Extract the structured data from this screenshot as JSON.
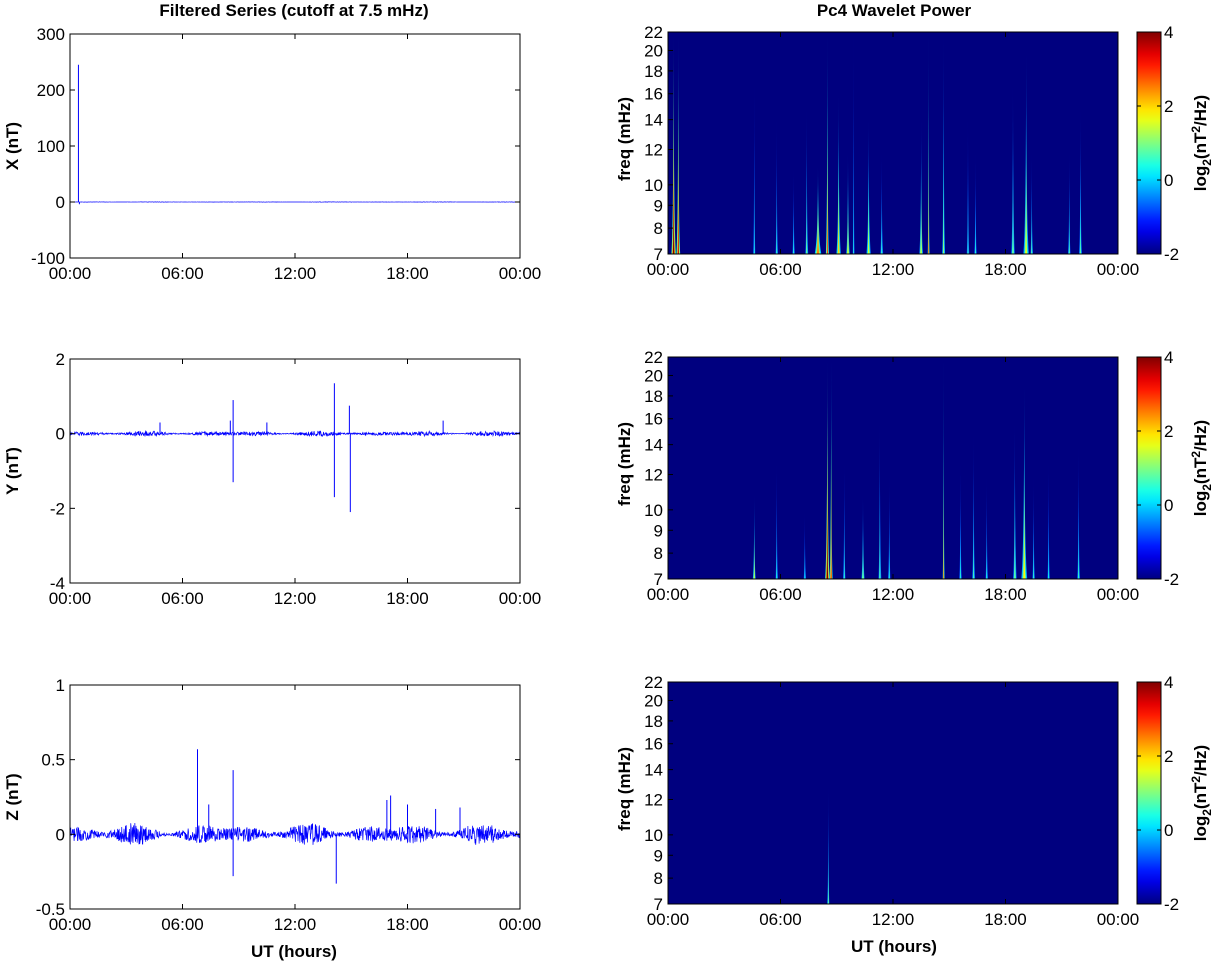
{
  "figure": {
    "left_title": "Filtered Series (cutoff at 7.5 mHz)",
    "right_title": "Pc4 Wavelet Power",
    "x_axis_label": "UT (hours)",
    "colors": {
      "trace": "#0000ff",
      "spectrogram_background": "#00007f",
      "axes": "#000000"
    }
  },
  "chart_data": [
    {
      "type": "line",
      "ylabel": "X (nT)",
      "xlim_hours": [
        0,
        24
      ],
      "ylim": [
        -100,
        300
      ],
      "x_ticks": [
        "00:00",
        "06:00",
        "12:00",
        "18:00",
        "00:00"
      ],
      "y_ticks": [
        -100,
        0,
        100,
        200,
        300
      ],
      "series": [
        {
          "baseline": 0,
          "noise_amplitude": 0.3,
          "spikes": [
            {
              "hour": 0.45,
              "value": 245
            },
            {
              "hour": 0.5,
              "value": -4
            }
          ]
        }
      ]
    },
    {
      "type": "line",
      "ylabel": "Y (nT)",
      "xlim_hours": [
        0,
        24
      ],
      "ylim": [
        -4,
        2
      ],
      "x_ticks": [
        "00:00",
        "06:00",
        "12:00",
        "18:00",
        "00:00"
      ],
      "y_ticks": [
        -4,
        -2,
        0,
        2
      ],
      "series": [
        {
          "baseline": 0,
          "noise_amplitude": 0.06,
          "spikes": [
            {
              "hour": 8.7,
              "value": 0.9
            },
            {
              "hour": 8.7,
              "value": -1.3
            },
            {
              "hour": 8.55,
              "value": 0.35
            },
            {
              "hour": 4.8,
              "value": 0.3
            },
            {
              "hour": 14.1,
              "value": 1.35
            },
            {
              "hour": 14.1,
              "value": -1.7
            },
            {
              "hour": 14.9,
              "value": 0.75
            },
            {
              "hour": 14.95,
              "value": -2.1
            },
            {
              "hour": 19.9,
              "value": 0.35
            },
            {
              "hour": 10.5,
              "value": 0.3
            }
          ]
        }
      ]
    },
    {
      "type": "line",
      "ylabel": "Z (nT)",
      "xlim_hours": [
        0,
        24
      ],
      "ylim": [
        -0.5,
        1
      ],
      "x_ticks": [
        "00:00",
        "06:00",
        "12:00",
        "18:00",
        "00:00"
      ],
      "y_ticks": [
        -0.5,
        0,
        0.5,
        1
      ],
      "xlabel": "UT (hours)",
      "series": [
        {
          "baseline": 0,
          "noise_amplitude": 0.06,
          "spikes": [
            {
              "hour": 6.8,
              "value": 0.57
            },
            {
              "hour": 8.7,
              "value": 0.43
            },
            {
              "hour": 8.7,
              "value": -0.28
            },
            {
              "hour": 14.2,
              "value": -0.33
            },
            {
              "hour": 16.9,
              "value": 0.23
            },
            {
              "hour": 17.1,
              "value": 0.26
            },
            {
              "hour": 18.0,
              "value": 0.2
            },
            {
              "hour": 7.4,
              "value": 0.2
            },
            {
              "hour": 19.5,
              "value": 0.17
            },
            {
              "hour": 20.8,
              "value": 0.18
            }
          ]
        }
      ]
    },
    {
      "type": "heatmap",
      "ylabel": "freq (mHz)",
      "xlim_hours": [
        0,
        24
      ],
      "ylim_mHz": [
        7,
        22
      ],
      "y_scale": "log",
      "x_ticks": [
        "00:00",
        "06:00",
        "12:00",
        "18:00",
        "00:00"
      ],
      "y_ticks": [
        7,
        8,
        9,
        10,
        12,
        14,
        16,
        18,
        20,
        22
      ],
      "colorbar": {
        "label_base": "log",
        "label_sub": "2",
        "label_mid": "(nT",
        "label_sup": "2",
        "label_end": "/Hz)",
        "range": [
          -2,
          4
        ],
        "ticks": [
          -2,
          0,
          2,
          4
        ]
      },
      "events": [
        {
          "hour": 0.3,
          "top_mHz": 22,
          "peak": 4.0,
          "width": 0.12
        },
        {
          "hour": 0.55,
          "top_mHz": 22,
          "peak": 3.5,
          "width": 0.1
        },
        {
          "hour": 4.6,
          "top_mHz": 17,
          "peak": 0.5,
          "width": 0.06
        },
        {
          "hour": 5.8,
          "top_mHz": 14,
          "peak": 0.6,
          "width": 0.07
        },
        {
          "hour": 6.7,
          "top_mHz": 11,
          "peak": 0.5,
          "width": 0.07
        },
        {
          "hour": 7.4,
          "top_mHz": 15,
          "peak": 1.0,
          "width": 0.08
        },
        {
          "hour": 8.0,
          "top_mHz": 11,
          "peak": 2.5,
          "width": 0.18
        },
        {
          "hour": 8.5,
          "top_mHz": 22,
          "peak": 3.0,
          "width": 0.08
        },
        {
          "hour": 9.1,
          "top_mHz": 16,
          "peak": 2.0,
          "width": 0.12
        },
        {
          "hour": 9.6,
          "top_mHz": 12,
          "peak": 1.8,
          "width": 0.1
        },
        {
          "hour": 9.9,
          "top_mHz": 22,
          "peak": 0.5,
          "width": 0.05
        },
        {
          "hour": 10.7,
          "top_mHz": 14,
          "peak": 1.5,
          "width": 0.12
        },
        {
          "hour": 11.4,
          "top_mHz": 12,
          "peak": 0.6,
          "width": 0.08
        },
        {
          "hour": 13.5,
          "top_mHz": 14,
          "peak": 1.6,
          "width": 0.1
        },
        {
          "hour": 13.9,
          "top_mHz": 22,
          "peak": 2.8,
          "width": 0.05
        },
        {
          "hour": 14.7,
          "top_mHz": 22,
          "peak": 1.2,
          "width": 0.08
        },
        {
          "hour": 16.0,
          "top_mHz": 14,
          "peak": 0.6,
          "width": 0.07
        },
        {
          "hour": 16.4,
          "top_mHz": 12,
          "peak": 0.5,
          "width": 0.07
        },
        {
          "hour": 18.4,
          "top_mHz": 17,
          "peak": 1.0,
          "width": 0.1
        },
        {
          "hour": 19.1,
          "top_mHz": 20,
          "peak": 1.6,
          "width": 0.15
        },
        {
          "hour": 19.4,
          "top_mHz": 12,
          "peak": 0.8,
          "width": 0.07
        },
        {
          "hour": 21.4,
          "top_mHz": 12,
          "peak": 0.8,
          "width": 0.07
        },
        {
          "hour": 22.0,
          "top_mHz": 15,
          "peak": 0.8,
          "width": 0.08
        }
      ]
    },
    {
      "type": "heatmap",
      "ylabel": "freq (mHz)",
      "xlim_hours": [
        0,
        24
      ],
      "ylim_mHz": [
        7,
        22
      ],
      "y_scale": "log",
      "x_ticks": [
        "00:00",
        "06:00",
        "12:00",
        "18:00",
        "00:00"
      ],
      "y_ticks": [
        7,
        8,
        9,
        10,
        12,
        14,
        16,
        18,
        20,
        22
      ],
      "colorbar": {
        "label_base": "log",
        "label_sub": "2",
        "label_mid": "(nT",
        "label_sup": "2",
        "label_end": "/Hz)",
        "range": [
          -2,
          4
        ],
        "ticks": [
          -2,
          0,
          2,
          4
        ]
      },
      "events": [
        {
          "hour": 4.6,
          "top_mHz": 11,
          "peak": 1.6,
          "width": 0.08
        },
        {
          "hour": 5.8,
          "top_mHz": 13,
          "peak": 0.5,
          "width": 0.07
        },
        {
          "hour": 7.3,
          "top_mHz": 10,
          "peak": 0.4,
          "width": 0.07
        },
        {
          "hour": 8.5,
          "top_mHz": 22,
          "peak": 4.0,
          "width": 0.12
        },
        {
          "hour": 8.7,
          "top_mHz": 22,
          "peak": 3.2,
          "width": 0.08
        },
        {
          "hour": 9.4,
          "top_mHz": 13,
          "peak": 0.6,
          "width": 0.07
        },
        {
          "hour": 10.4,
          "top_mHz": 11,
          "peak": 1.2,
          "width": 0.09
        },
        {
          "hour": 11.3,
          "top_mHz": 16,
          "peak": 0.8,
          "width": 0.08
        },
        {
          "hour": 11.8,
          "top_mHz": 12,
          "peak": 0.5,
          "width": 0.07
        },
        {
          "hour": 14.7,
          "top_mHz": 22,
          "peak": 2.6,
          "width": 0.05
        },
        {
          "hour": 15.6,
          "top_mHz": 13,
          "peak": 0.5,
          "width": 0.07
        },
        {
          "hour": 16.3,
          "top_mHz": 15,
          "peak": 0.7,
          "width": 0.08
        },
        {
          "hour": 17.0,
          "top_mHz": 12,
          "peak": 0.5,
          "width": 0.07
        },
        {
          "hour": 18.5,
          "top_mHz": 16,
          "peak": 1.0,
          "width": 0.1
        },
        {
          "hour": 19.0,
          "top_mHz": 19,
          "peak": 1.8,
          "width": 0.16
        },
        {
          "hour": 19.5,
          "top_mHz": 12,
          "peak": 0.6,
          "width": 0.07
        },
        {
          "hour": 20.3,
          "top_mHz": 13,
          "peak": 0.4,
          "width": 0.07
        },
        {
          "hour": 21.9,
          "top_mHz": 14,
          "peak": 0.6,
          "width": 0.08
        }
      ]
    },
    {
      "type": "heatmap",
      "ylabel": "freq (mHz)",
      "xlabel": "UT (hours)",
      "xlim_hours": [
        0,
        24
      ],
      "ylim_mHz": [
        7,
        22
      ],
      "y_scale": "log",
      "x_ticks": [
        "00:00",
        "06:00",
        "12:00",
        "18:00",
        "00:00"
      ],
      "y_ticks": [
        7,
        8,
        9,
        10,
        12,
        14,
        16,
        18,
        20,
        22
      ],
      "colorbar": {
        "label_base": "log",
        "label_sub": "2",
        "label_mid": "(nT",
        "label_sup": "2",
        "label_end": "/Hz)",
        "range": [
          -2,
          4
        ],
        "ticks": [
          -2,
          0,
          2,
          4
        ]
      },
      "events": [
        {
          "hour": 8.55,
          "top_mHz": 13,
          "peak": 1.0,
          "width": 0.06
        }
      ]
    }
  ]
}
